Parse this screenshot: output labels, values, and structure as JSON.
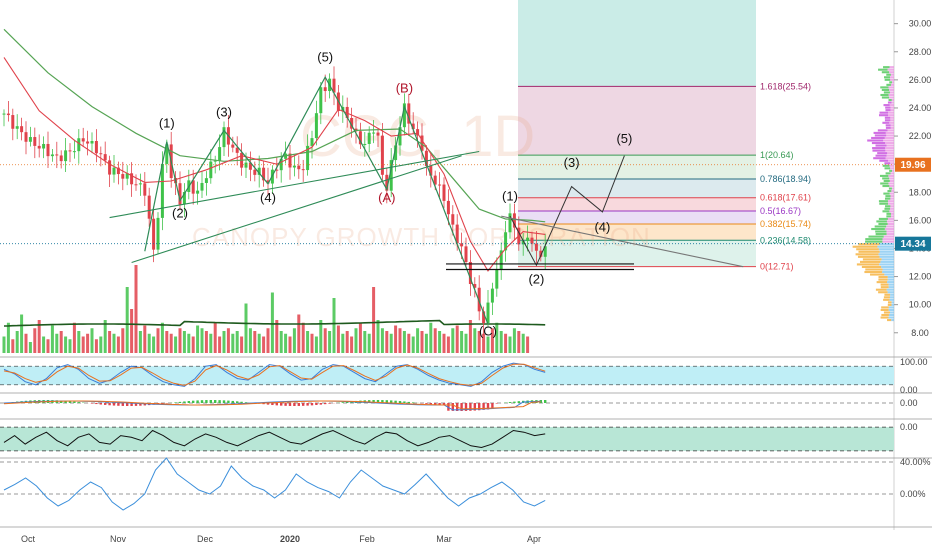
{
  "colors": {
    "up": "#3fc24a",
    "down": "#e0424b",
    "ma_slow": "#56a454",
    "ma_fast": "#e0424b",
    "fib_line": "#7b2b56",
    "band": "#bfeef6",
    "band_green": "#b8e6d6",
    "wave_line": "#2e8b57",
    "price_tag": "#e8711f"
  },
  "watermark": {
    "symbol": "CGC, 1D",
    "name": "CANOPY GROWTH CORPORATION"
  },
  "price_tag": "19.96",
  "last_price_tag": "14.34",
  "chart_data": {
    "type": "candlestick",
    "title": "",
    "x_ticks": [
      "Oct",
      "Nov",
      "Dec",
      "2020",
      "Feb",
      "Mar",
      "Apr"
    ],
    "y_ticks": [
      "8.00",
      "10.00",
      "12.00",
      "14.00",
      "16.00",
      "18.00",
      "20.00",
      "22.00",
      "24.00",
      "26.00",
      "28.00",
      "30.00"
    ],
    "ylim": [
      7.2,
      31.2
    ],
    "close_path": [
      [
        0,
        23.6
      ],
      [
        3,
        22.5
      ],
      [
        6,
        21.6
      ],
      [
        9,
        21.1
      ],
      [
        12,
        20.4
      ],
      [
        15,
        20.9
      ],
      [
        18,
        21.8
      ],
      [
        21,
        21.1
      ],
      [
        24,
        19.6
      ],
      [
        27,
        19.2
      ],
      [
        30,
        18.6
      ],
      [
        32,
        18.1
      ],
      [
        34,
        13.8
      ],
      [
        35,
        16.5
      ],
      [
        36,
        19.7
      ],
      [
        37,
        21.5
      ],
      [
        38,
        19.2
      ],
      [
        40,
        17.4
      ],
      [
        42,
        18.6
      ],
      [
        44,
        17.9
      ],
      [
        46,
        19.3
      ],
      [
        48,
        20.4
      ],
      [
        50,
        22.3
      ],
      [
        52,
        21.1
      ],
      [
        54,
        20.1
      ],
      [
        56,
        19.6
      ],
      [
        58,
        19.4
      ],
      [
        60,
        18.7
      ],
      [
        62,
        19.9
      ],
      [
        64,
        20.6
      ],
      [
        66,
        19.6
      ],
      [
        68,
        19.8
      ],
      [
        70,
        22.1
      ],
      [
        72,
        25.2
      ],
      [
        74,
        25.9
      ],
      [
        75,
        25.0
      ],
      [
        76,
        24.1
      ],
      [
        78,
        23.4
      ],
      [
        80,
        22.0
      ],
      [
        82,
        21.4
      ],
      [
        84,
        22.6
      ],
      [
        85,
        21.8
      ],
      [
        86,
        19.2
      ],
      [
        87,
        18.4
      ],
      [
        89,
        21.5
      ],
      [
        91,
        24.0
      ],
      [
        93,
        22.4
      ],
      [
        95,
        21.3
      ],
      [
        96,
        19.6
      ],
      [
        98,
        18.8
      ],
      [
        100,
        17.6
      ],
      [
        102,
        15.4
      ],
      [
        104,
        14.0
      ],
      [
        106,
        11.8
      ],
      [
        107,
        10.9
      ],
      [
        108,
        9.6
      ],
      [
        109,
        8.9
      ],
      [
        110,
        9.8
      ],
      [
        111,
        11.4
      ],
      [
        113,
        13.6
      ],
      [
        114,
        15.5
      ],
      [
        115,
        16.3
      ],
      [
        116,
        15.4
      ],
      [
        117,
        14.6
      ],
      [
        118,
        14.2
      ],
      [
        119,
        14.9
      ],
      [
        120,
        14.5
      ],
      [
        121,
        13.5
      ],
      [
        122,
        13.7
      ],
      [
        123,
        14.1
      ]
    ],
    "ma_slow": [
      [
        0,
        29.6
      ],
      [
        10,
        26.5
      ],
      [
        20,
        24.1
      ],
      [
        30,
        22.2
      ],
      [
        40,
        20.6
      ],
      [
        50,
        20.2
      ],
      [
        60,
        20.4
      ],
      [
        70,
        20.9
      ],
      [
        80,
        22.4
      ],
      [
        90,
        22.5
      ],
      [
        96,
        21.2
      ],
      [
        102,
        19.0
      ],
      [
        108,
        16.8
      ],
      [
        114,
        16.1
      ],
      [
        120,
        16.0
      ],
      [
        123,
        15.9
      ]
    ],
    "ma_fast": [
      [
        0,
        27.6
      ],
      [
        8,
        23.8
      ],
      [
        16,
        21.7
      ],
      [
        24,
        20.0
      ],
      [
        32,
        18.7
      ],
      [
        38,
        18.8
      ],
      [
        46,
        19.6
      ],
      [
        54,
        20.6
      ],
      [
        62,
        20.0
      ],
      [
        70,
        21.2
      ],
      [
        76,
        23.9
      ],
      [
        82,
        23.1
      ],
      [
        88,
        22.0
      ],
      [
        94,
        22.2
      ],
      [
        100,
        19.3
      ],
      [
        106,
        14.5
      ],
      [
        110,
        12.4
      ],
      [
        114,
        14.0
      ],
      [
        118,
        15.2
      ],
      [
        123,
        15.0
      ]
    ],
    "fib_levels": [
      {
        "label": "1.618(25.54)",
        "value": 25.54,
        "color": "#a0286c"
      },
      {
        "label": "1(20.64)",
        "value": 20.64,
        "color": "#3a9a55"
      },
      {
        "label": "0.786(18.94)",
        "value": 18.94,
        "color": "#236a80"
      },
      {
        "label": "0.618(17.61)",
        "value": 17.61,
        "color": "#e0424b"
      },
      {
        "label": "0.5(16.67)",
        "value": 16.67,
        "color": "#9a36c4"
      },
      {
        "label": "0.382(15.74)",
        "value": 15.74,
        "color": "#e98a17"
      },
      {
        "label": "0.236(14.58)",
        "value": 14.58,
        "color": "#1f8a70"
      },
      {
        "label": "0(12.71)",
        "value": 12.71,
        "color": "#e0424b"
      }
    ],
    "wave_labels": [
      {
        "text": "(1)",
        "i": 37,
        "v": 22.6,
        "red": false
      },
      {
        "text": "(2)",
        "i": 40,
        "v": 16.2,
        "red": false
      },
      {
        "text": "(3)",
        "i": 50,
        "v": 23.4,
        "red": false
      },
      {
        "text": "(4)",
        "i": 60,
        "v": 17.3,
        "red": false
      },
      {
        "text": "(5)",
        "i": 73,
        "v": 27.3,
        "red": false
      },
      {
        "text": "(A)",
        "i": 87,
        "v": 17.3,
        "red": true
      },
      {
        "text": "(B)",
        "i": 91,
        "v": 25.1,
        "red": true
      },
      {
        "text": "(C)",
        "i": 110,
        "v": 7.8,
        "red": false
      },
      {
        "text": "(1)",
        "i": 115,
        "v": 17.4,
        "red": false
      },
      {
        "text": "(2)",
        "i": 121,
        "v": 11.5,
        "red": false
      },
      {
        "text": "(3)",
        "i": 129,
        "v": 19.8,
        "red": false
      },
      {
        "text": "(4)",
        "i": 136,
        "v": 15.2,
        "red": false
      },
      {
        "text": "(5)",
        "i": 141,
        "v": 21.5,
        "red": false
      }
    ],
    "wave_path": [
      [
        32,
        13.8
      ],
      [
        37,
        21.6
      ],
      [
        40,
        17.4
      ],
      [
        50,
        22.4
      ],
      [
        60,
        18.6
      ],
      [
        73,
        26.2
      ],
      [
        87,
        18.2
      ],
      [
        91,
        24.1
      ],
      [
        110,
        8.6
      ]
    ],
    "projection_path": [
      [
        115,
        16.3
      ],
      [
        121,
        12.8
      ],
      [
        129,
        18.4
      ],
      [
        136,
        16.6
      ],
      [
        141,
        20.6
      ]
    ],
    "trendlines": [
      [
        [
          24,
          16.2
        ],
        [
          108,
          20.9
        ]
      ],
      [
        [
          29,
          13.0
        ],
        [
          104,
          20.6
        ]
      ],
      [
        [
          113,
          16.3
        ],
        [
          168,
          12.7
        ]
      ]
    ],
    "volume": [
      30,
      55,
      25,
      40,
      70,
      35,
      20,
      45,
      60,
      30,
      25,
      50,
      35,
      40,
      30,
      25,
      55,
      40,
      30,
      35,
      45,
      25,
      30,
      60,
      40,
      35,
      30,
      45,
      120,
      80,
      160,
      40,
      50,
      35,
      30,
      45,
      55,
      40,
      35,
      30,
      45,
      40,
      35,
      30,
      50,
      45,
      40,
      35,
      55,
      30,
      40,
      45,
      35,
      40,
      30,
      90,
      45,
      40,
      35,
      30,
      45,
      110,
      60,
      40,
      35,
      30,
      45,
      70,
      55,
      40,
      35,
      30,
      60,
      45,
      40,
      100,
      50,
      35,
      40,
      30,
      45,
      55,
      40,
      35,
      120,
      60,
      45,
      40,
      35,
      50,
      45,
      40,
      35,
      30,
      45,
      40,
      35,
      55,
      45,
      40,
      35,
      30,
      45,
      50,
      40,
      35,
      60,
      45,
      40,
      35,
      30,
      45,
      55,
      40,
      35,
      30,
      45,
      40,
      35,
      30
    ],
    "stoch": {
      "ticks": [
        "100.00",
        "0.00"
      ],
      "k": [
        70,
        55,
        30,
        20,
        40,
        75,
        85,
        70,
        40,
        25,
        35,
        60,
        80,
        75,
        50,
        30,
        20,
        15,
        40,
        80,
        85,
        60,
        40,
        35,
        60,
        85,
        80,
        55,
        35,
        40,
        70,
        85,
        80,
        60,
        40,
        30,
        55,
        80,
        85,
        70,
        50,
        35,
        25,
        20,
        15,
        30,
        60,
        80,
        90,
        85,
        70,
        60
      ],
      "d": [
        65,
        58,
        40,
        28,
        35,
        62,
        80,
        74,
        50,
        32,
        33,
        52,
        74,
        76,
        58,
        38,
        25,
        18,
        32,
        68,
        82,
        68,
        48,
        38,
        52,
        78,
        82,
        62,
        42,
        38,
        60,
        80,
        82,
        66,
        48,
        34,
        48,
        74,
        84,
        74,
        56,
        40,
        30,
        22,
        18,
        25,
        50,
        74,
        86,
        86,
        75,
        64
      ]
    },
    "macd": {
      "ticks": [
        "0.00"
      ]
    },
    "rsi": {
      "ticks": [
        "0.00"
      ],
      "values": [
        40,
        60,
        35,
        55,
        70,
        45,
        30,
        55,
        65,
        40,
        35,
        60,
        55,
        45,
        75,
        60,
        40,
        30,
        50,
        65,
        55,
        40,
        30,
        45,
        60,
        70,
        55,
        40,
        35,
        50,
        65,
        75,
        60,
        45,
        35,
        55,
        70,
        65,
        45,
        30,
        40,
        55,
        60,
        45,
        30,
        25,
        35,
        55,
        75,
        70,
        60,
        65
      ]
    },
    "roc": {
      "ticks": [
        "40.00%",
        "0.00%"
      ],
      "values": [
        5,
        12,
        20,
        10,
        -5,
        -15,
        -8,
        5,
        15,
        8,
        -10,
        -20,
        -12,
        0,
        30,
        45,
        25,
        15,
        5,
        0,
        10,
        35,
        20,
        10,
        5,
        -5,
        5,
        25,
        15,
        8,
        3,
        -5,
        15,
        30,
        20,
        10,
        5,
        0,
        12,
        25,
        10,
        -5,
        -15,
        -5,
        0,
        8,
        15,
        5,
        -10,
        -15,
        -8
      ]
    }
  }
}
